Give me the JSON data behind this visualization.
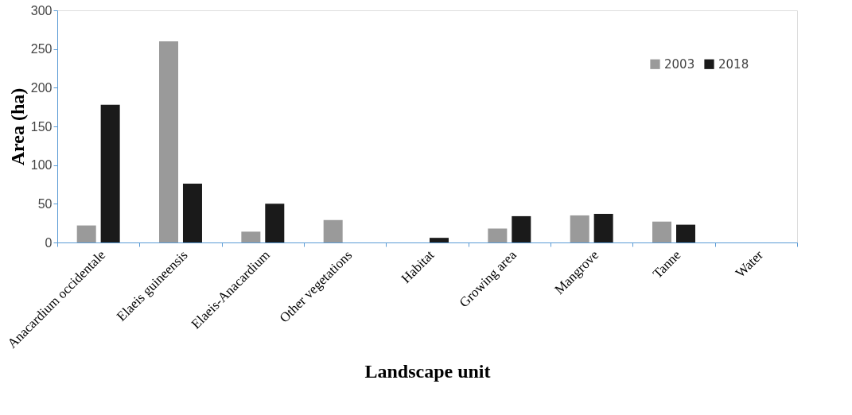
{
  "chart_data": {
    "type": "bar",
    "xlabel": "Landscape unit",
    "ylabel": "Area (ha)",
    "categories": [
      "Anacardium occidentale",
      "Elaeis guineensis",
      "Elaeis-Anacardium",
      "Other vegetations",
      "Habitat",
      "Growing area",
      "Mangrove",
      "Tanne",
      "Water"
    ],
    "series": [
      {
        "name": "2003",
        "color": "#9a9a9a",
        "values": [
          22,
          260,
          14,
          29,
          0,
          18,
          35,
          27,
          0
        ]
      },
      {
        "name": "2018",
        "color": "#1a1a1a",
        "values": [
          178,
          76,
          50,
          0,
          6,
          34,
          37,
          23,
          0
        ]
      }
    ],
    "ylim": [
      0,
      300
    ],
    "yticks": [
      0,
      50,
      100,
      150,
      200,
      250,
      300
    ],
    "grid": false,
    "legend": "top right"
  }
}
